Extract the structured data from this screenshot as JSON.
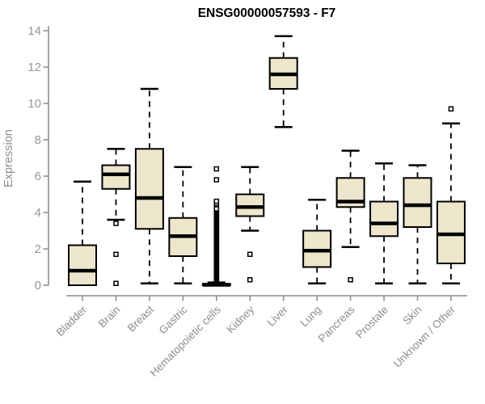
{
  "chart_data": {
    "type": "boxplot",
    "title": "ENSG00000057593 - F7",
    "ylabel": "Expression",
    "xlabel": "",
    "ylim": [
      0,
      14
    ],
    "yticks": [
      0,
      2,
      4,
      6,
      8,
      10,
      12,
      14
    ],
    "grid": false,
    "legend": "none",
    "categories": [
      "Bladder",
      "Brain",
      "Breast",
      "Gastric",
      "Hematopoietic cells",
      "Kidney",
      "Liver",
      "Lung",
      "Pancreas",
      "Prostate",
      "Skin",
      "Unknown / Other"
    ],
    "boxes": [
      {
        "category": "Bladder",
        "whisker_low": 0,
        "q1": 0,
        "median": 0.8,
        "q3": 2.2,
        "whisker_high": 5.7,
        "outliers": []
      },
      {
        "category": "Brain",
        "whisker_low": 3.6,
        "q1": 5.3,
        "median": 6.1,
        "q3": 6.6,
        "whisker_high": 7.5,
        "outliers": [
          3.4,
          1.7,
          0.1
        ]
      },
      {
        "category": "Breast",
        "whisker_low": 0.1,
        "q1": 3.1,
        "median": 4.8,
        "q3": 7.5,
        "whisker_high": 10.8,
        "outliers": []
      },
      {
        "category": "Gastric",
        "whisker_low": 0.1,
        "q1": 1.6,
        "median": 2.7,
        "q3": 3.7,
        "whisker_high": 6.5,
        "outliers": []
      },
      {
        "category": "Hematopoietic cells",
        "whisker_low": 0,
        "q1": 0,
        "median": 0.02,
        "q3": 0.08,
        "whisker_high": 0.15,
        "outliers": [
          4.35,
          4.5,
          4.62,
          5.8,
          6.4
        ],
        "outlier_column": {
          "min": 0.18,
          "max": 4.2,
          "count": 70
        }
      },
      {
        "category": "Kidney",
        "whisker_low": 3.0,
        "q1": 3.8,
        "median": 4.3,
        "q3": 5.0,
        "whisker_high": 6.5,
        "outliers": [
          1.7,
          0.3
        ]
      },
      {
        "category": "Liver",
        "whisker_low": 8.7,
        "q1": 10.8,
        "median": 11.6,
        "q3": 12.5,
        "whisker_high": 13.7,
        "outliers": []
      },
      {
        "category": "Lung",
        "whisker_low": 0.1,
        "q1": 1.0,
        "median": 1.9,
        "q3": 3.0,
        "whisker_high": 4.7,
        "outliers": []
      },
      {
        "category": "Pancreas",
        "whisker_low": 2.1,
        "q1": 4.3,
        "median": 4.6,
        "q3": 5.9,
        "whisker_high": 7.4,
        "outliers": [
          0.3
        ]
      },
      {
        "category": "Prostate",
        "whisker_low": 0.1,
        "q1": 2.7,
        "median": 3.4,
        "q3": 4.6,
        "whisker_high": 6.7,
        "outliers": []
      },
      {
        "category": "Skin",
        "whisker_low": 0.1,
        "q1": 3.2,
        "median": 4.4,
        "q3": 5.9,
        "whisker_high": 6.6,
        "outliers": []
      },
      {
        "category": "Unknown / Other",
        "whisker_low": 0.1,
        "q1": 1.2,
        "median": 2.8,
        "q3": 4.6,
        "whisker_high": 8.9,
        "outliers": [
          9.7
        ]
      }
    ]
  },
  "style": {
    "background": "#FFFFFF",
    "box_fill": "#EDE6CD",
    "box_stroke": "#000000",
    "median_color": "#000000",
    "whisker_color": "#000000",
    "outlier_fill": "#FFFFFF",
    "axis_color": "#8A8A8A",
    "tick_label_color": "#979797",
    "category_label_color": "#8D8D8D",
    "title_color": "#000000"
  }
}
